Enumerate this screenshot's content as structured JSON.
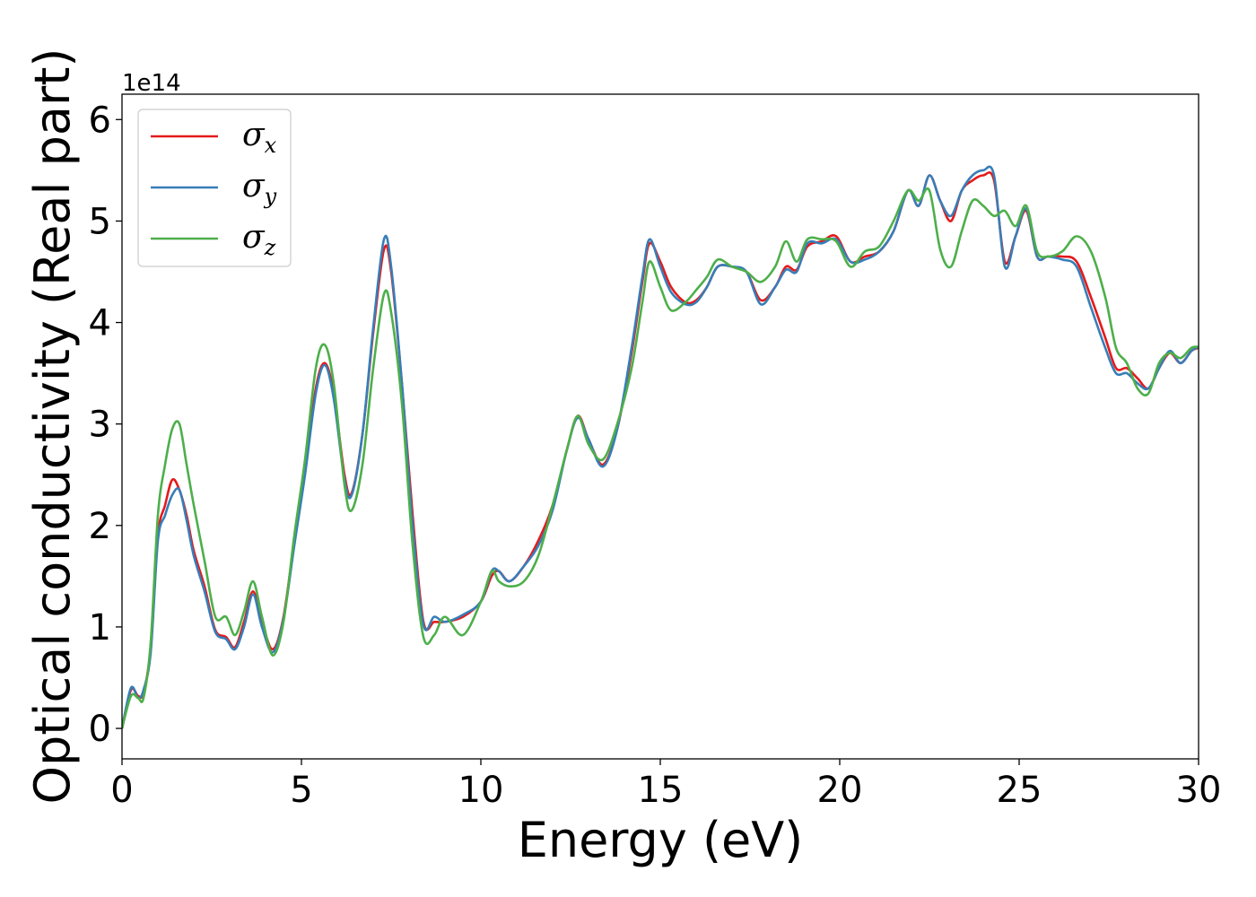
{
  "chart_data": {
    "type": "line",
    "title": "",
    "xlabel": "Energy (eV)",
    "ylabel": "Optical conductivity (Real part)",
    "y_offset_label": "1e14",
    "xlim": [
      0,
      30
    ],
    "ylim": [
      -0.3,
      6.25
    ],
    "xticks": [
      0,
      5,
      10,
      15,
      20,
      25,
      30
    ],
    "xtick_labels": [
      "0",
      "5",
      "10",
      "15",
      "20",
      "25",
      "30"
    ],
    "yticks": [
      0,
      1,
      2,
      3,
      4,
      5,
      6
    ],
    "ytick_labels": [
      "0",
      "1",
      "2",
      "3",
      "4",
      "5",
      "6"
    ],
    "grid": false,
    "legend_position": "upper-left",
    "series": [
      {
        "name": "σx",
        "legend_symbol": "σ",
        "legend_subscript": "x",
        "color": "#e41a1c",
        "x": [
          0,
          0.25,
          0.45,
          0.6,
          0.8,
          1.0,
          1.2,
          1.4,
          1.6,
          1.8,
          2.0,
          2.3,
          2.6,
          2.9,
          3.15,
          3.4,
          3.65,
          3.9,
          4.2,
          4.5,
          4.8,
          5.1,
          5.4,
          5.65,
          5.9,
          6.2,
          6.4,
          6.7,
          7.0,
          7.3,
          7.5,
          7.8,
          8.1,
          8.4,
          8.7,
          9.0,
          9.5,
          10.0,
          10.3,
          10.5,
          10.8,
          11.2,
          11.6,
          12.0,
          12.4,
          12.7,
          13.0,
          13.4,
          13.8,
          14.2,
          14.5,
          14.7,
          15.0,
          15.3,
          15.7,
          16.0,
          16.3,
          16.6,
          17.0,
          17.4,
          17.8,
          18.2,
          18.5,
          18.8,
          19.1,
          19.5,
          19.9,
          20.3,
          20.7,
          21.1,
          21.5,
          21.9,
          22.2,
          22.5,
          22.8,
          23.1,
          23.4,
          23.7,
          24.0,
          24.3,
          24.6,
          24.9,
          25.2,
          25.5,
          25.8,
          26.2,
          26.6,
          27.0,
          27.4,
          27.7,
          28.0,
          28.3,
          28.6,
          28.9,
          29.2,
          29.5,
          29.8,
          30.0
        ],
        "values": [
          0,
          0.38,
          0.32,
          0.35,
          0.8,
          1.9,
          2.2,
          2.45,
          2.35,
          2.1,
          1.75,
          1.4,
          0.97,
          0.9,
          0.8,
          1.05,
          1.35,
          1.05,
          0.78,
          1.1,
          1.85,
          2.55,
          3.35,
          3.6,
          3.3,
          2.5,
          2.32,
          2.9,
          3.9,
          4.72,
          4.5,
          3.4,
          2.1,
          1.05,
          1.05,
          1.05,
          1.1,
          1.25,
          1.5,
          1.55,
          1.45,
          1.6,
          1.85,
          2.2,
          2.75,
          3.08,
          2.85,
          2.6,
          2.95,
          3.7,
          4.4,
          4.78,
          4.6,
          4.35,
          4.2,
          4.22,
          4.35,
          4.55,
          4.55,
          4.5,
          4.22,
          4.35,
          4.55,
          4.52,
          4.75,
          4.8,
          4.85,
          4.6,
          4.65,
          4.7,
          4.9,
          5.3,
          5.15,
          5.45,
          5.2,
          5.0,
          5.3,
          5.4,
          5.45,
          5.4,
          4.6,
          4.85,
          5.1,
          4.65,
          4.65,
          4.65,
          4.6,
          4.25,
          3.85,
          3.55,
          3.55,
          3.45,
          3.35,
          3.55,
          3.7,
          3.6,
          3.72,
          3.75
        ]
      },
      {
        "name": "σy",
        "legend_symbol": "σ",
        "legend_subscript": "y",
        "color": "#377eb8",
        "x": [
          0,
          0.25,
          0.45,
          0.6,
          0.8,
          1.0,
          1.2,
          1.4,
          1.6,
          1.8,
          2.0,
          2.3,
          2.6,
          2.9,
          3.15,
          3.4,
          3.65,
          3.9,
          4.2,
          4.5,
          4.8,
          5.1,
          5.4,
          5.65,
          5.9,
          6.2,
          6.4,
          6.7,
          7.0,
          7.3,
          7.5,
          7.8,
          8.1,
          8.4,
          8.7,
          9.0,
          9.5,
          10.0,
          10.3,
          10.5,
          10.8,
          11.2,
          11.6,
          12.0,
          12.4,
          12.7,
          13.0,
          13.4,
          13.8,
          14.2,
          14.5,
          14.7,
          15.0,
          15.3,
          15.7,
          16.0,
          16.3,
          16.6,
          17.0,
          17.4,
          17.8,
          18.2,
          18.5,
          18.8,
          19.1,
          19.5,
          19.9,
          20.3,
          20.7,
          21.1,
          21.5,
          21.9,
          22.2,
          22.5,
          22.8,
          23.1,
          23.4,
          23.7,
          24.0,
          24.3,
          24.6,
          24.9,
          25.2,
          25.5,
          25.8,
          26.2,
          26.6,
          27.0,
          27.4,
          27.7,
          28.0,
          28.3,
          28.6,
          28.9,
          29.2,
          29.5,
          29.8,
          30.0
        ],
        "values": [
          0,
          0.4,
          0.3,
          0.38,
          0.75,
          1.85,
          2.1,
          2.3,
          2.35,
          2.05,
          1.7,
          1.35,
          0.95,
          0.88,
          0.78,
          1.0,
          1.32,
          1.0,
          0.75,
          1.08,
          1.8,
          2.5,
          3.3,
          3.58,
          3.25,
          2.45,
          2.3,
          2.9,
          3.95,
          4.82,
          4.55,
          3.4,
          2.0,
          1.02,
          1.1,
          1.05,
          1.12,
          1.25,
          1.55,
          1.55,
          1.45,
          1.6,
          1.8,
          2.15,
          2.75,
          3.06,
          2.85,
          2.58,
          2.95,
          3.75,
          4.45,
          4.82,
          4.55,
          4.3,
          4.18,
          4.2,
          4.35,
          4.55,
          4.55,
          4.5,
          4.18,
          4.35,
          4.52,
          4.5,
          4.78,
          4.78,
          4.82,
          4.6,
          4.62,
          4.7,
          4.9,
          5.3,
          5.15,
          5.45,
          5.2,
          5.05,
          5.3,
          5.45,
          5.5,
          5.45,
          4.55,
          4.85,
          5.12,
          4.65,
          4.65,
          4.62,
          4.55,
          4.15,
          3.75,
          3.5,
          3.5,
          3.4,
          3.35,
          3.55,
          3.72,
          3.6,
          3.72,
          3.76
        ]
      },
      {
        "name": "σz",
        "legend_symbol": "σ",
        "legend_subscript": "z",
        "color": "#4daf4a",
        "x": [
          0,
          0.25,
          0.45,
          0.6,
          0.8,
          1.0,
          1.2,
          1.4,
          1.6,
          1.8,
          2.0,
          2.3,
          2.6,
          2.9,
          3.15,
          3.4,
          3.65,
          3.9,
          4.2,
          4.5,
          4.8,
          5.1,
          5.4,
          5.65,
          5.9,
          6.2,
          6.4,
          6.7,
          7.0,
          7.3,
          7.5,
          7.8,
          8.1,
          8.4,
          8.7,
          9.0,
          9.5,
          10.0,
          10.3,
          10.5,
          10.8,
          11.2,
          11.6,
          12.0,
          12.4,
          12.7,
          13.0,
          13.4,
          13.8,
          14.2,
          14.5,
          14.7,
          15.0,
          15.3,
          15.7,
          16.0,
          16.3,
          16.6,
          17.0,
          17.4,
          17.8,
          18.2,
          18.5,
          18.8,
          19.1,
          19.5,
          19.9,
          20.3,
          20.7,
          21.1,
          21.5,
          21.9,
          22.2,
          22.5,
          22.8,
          23.1,
          23.4,
          23.7,
          24.0,
          24.3,
          24.6,
          24.9,
          25.2,
          25.5,
          25.8,
          26.2,
          26.6,
          27.0,
          27.4,
          27.7,
          28.0,
          28.3,
          28.6,
          28.9,
          29.2,
          29.5,
          29.8,
          30.0
        ],
        "values": [
          0,
          0.32,
          0.3,
          0.3,
          0.85,
          2.1,
          2.6,
          2.95,
          3.0,
          2.6,
          2.2,
          1.65,
          1.1,
          1.1,
          0.92,
          1.15,
          1.45,
          1.1,
          0.72,
          1.05,
          1.9,
          2.65,
          3.55,
          3.78,
          3.4,
          2.4,
          2.15,
          2.6,
          3.55,
          4.28,
          4.1,
          3.2,
          1.8,
          0.9,
          0.92,
          1.1,
          0.92,
          1.25,
          1.55,
          1.45,
          1.4,
          1.45,
          1.7,
          2.2,
          2.75,
          3.08,
          2.8,
          2.65,
          3.0,
          3.55,
          4.2,
          4.6,
          4.35,
          4.12,
          4.2,
          4.32,
          4.45,
          4.62,
          4.55,
          4.5,
          4.4,
          4.55,
          4.8,
          4.6,
          4.82,
          4.82,
          4.8,
          4.55,
          4.7,
          4.75,
          5.0,
          5.3,
          5.2,
          5.3,
          4.72,
          4.55,
          4.9,
          5.2,
          5.15,
          5.05,
          5.1,
          4.95,
          5.15,
          4.7,
          4.65,
          4.7,
          4.85,
          4.7,
          4.25,
          3.75,
          3.6,
          3.35,
          3.3,
          3.6,
          3.7,
          3.65,
          3.75,
          3.76
        ]
      }
    ]
  }
}
